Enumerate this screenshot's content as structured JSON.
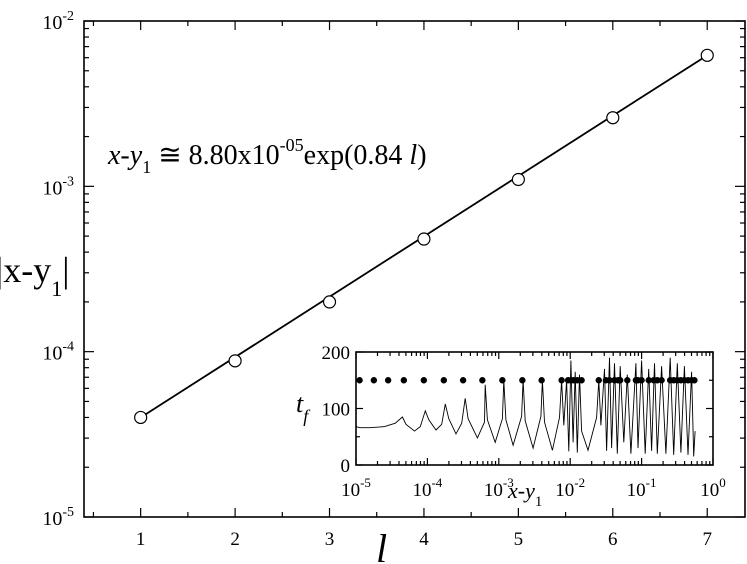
{
  "chart_data": [
    {
      "type": "scatter",
      "xlabel": "l",
      "ylabel": {
        "main": "|x-y",
        "sub": "1",
        "close": "|"
      },
      "xlim": [
        0.4,
        7.4
      ],
      "ylim_log10": [
        -5,
        -2
      ],
      "y_scale": "log",
      "grid": false,
      "x_ticks": [
        1,
        2,
        3,
        4,
        5,
        6,
        7
      ],
      "x_tick_labels": [
        "1",
        "2",
        "3",
        "4",
        "5",
        "6",
        "7"
      ],
      "y_ticks": [
        {
          "value": 1e-05,
          "base": "10",
          "exp": "-5"
        },
        {
          "value": 0.0001,
          "base": "10",
          "exp": "-4"
        },
        {
          "value": 0.001,
          "base": "10",
          "exp": "-3"
        },
        {
          "value": 0.01,
          "base": "10",
          "exp": "-2"
        }
      ],
      "points": [
        {
          "x": 1,
          "y": 4e-05
        },
        {
          "x": 2,
          "y": 8.8e-05
        },
        {
          "x": 3,
          "y": 0.0002
        },
        {
          "x": 4,
          "y": 0.00048
        },
        {
          "x": 5,
          "y": 0.0011
        },
        {
          "x": 6,
          "y": 0.0026
        },
        {
          "x": 7,
          "y": 0.0062
        }
      ],
      "fit": {
        "a": 8.8e-05,
        "b": 0.84,
        "x_range": [
          1,
          7
        ]
      },
      "annotation": {
        "p1": "x-y",
        "p1_sub": "1",
        "p2": " ≅ 8.80x10",
        "p2_sup": "-05",
        "p3": "exp(0.84 ",
        "p3_var": "l",
        "p3_end": ")"
      }
    },
    {
      "type": "line",
      "inset": true,
      "xlabel": {
        "main": "x-y",
        "sub": "1"
      },
      "ylabel": {
        "main": "t",
        "sub": "f"
      },
      "x_scale": "log",
      "xlim_log10": [
        -5,
        0
      ],
      "ylim": [
        0,
        200
      ],
      "y_ticks": [
        0,
        100,
        200
      ],
      "y_tick_labels": [
        "0",
        "100",
        "200"
      ],
      "x_ticks": [
        {
          "value": 1e-05,
          "base": "10",
          "exp": "-5"
        },
        {
          "value": 0.0001,
          "base": "10",
          "exp": "-4"
        },
        {
          "value": 0.001,
          "base": "10",
          "exp": "-3"
        },
        {
          "value": 0.01,
          "base": "10",
          "exp": "-2"
        },
        {
          "value": 0.1,
          "base": "10",
          "exp": "-1"
        },
        {
          "value": 1,
          "base": "10",
          "exp": "0"
        }
      ],
      "dots_y": 150,
      "dots_x_log10": [
        -4.95,
        -4.75,
        -4.55,
        -4.33,
        -4.05,
        -3.77,
        -3.5,
        -3.23,
        -2.95,
        -2.67,
        -2.4,
        -2.12,
        -2.03,
        -1.99,
        -1.95,
        -1.9,
        -1.84,
        -1.6,
        -1.5,
        -1.45,
        -1.38,
        -1.33,
        -1.3,
        -1.2,
        -1.08,
        -1.05,
        -1.0,
        -0.9,
        -0.83,
        -0.78,
        -0.72,
        -0.6,
        -0.55,
        -0.5,
        -0.45,
        -0.4,
        -0.35,
        -0.3,
        -0.26
      ],
      "curve": [
        [
          -5.0,
          68
        ],
        [
          -4.95,
          66
        ],
        [
          -4.8,
          66
        ],
        [
          -4.6,
          68
        ],
        [
          -4.45,
          74
        ],
        [
          -4.35,
          85
        ],
        [
          -4.3,
          72
        ],
        [
          -4.18,
          60
        ],
        [
          -4.1,
          68
        ],
        [
          -4.03,
          96
        ],
        [
          -3.98,
          80
        ],
        [
          -3.88,
          62
        ],
        [
          -3.8,
          72
        ],
        [
          -3.75,
          108
        ],
        [
          -3.7,
          82
        ],
        [
          -3.6,
          55
        ],
        [
          -3.52,
          74
        ],
        [
          -3.47,
          118
        ],
        [
          -3.43,
          82
        ],
        [
          -3.3,
          48
        ],
        [
          -3.2,
          76
        ],
        [
          -3.19,
          142
        ],
        [
          -3.16,
          80
        ],
        [
          -3.05,
          40
        ],
        [
          -2.95,
          82
        ],
        [
          -2.93,
          150
        ],
        [
          -2.9,
          80
        ],
        [
          -2.8,
          35
        ],
        [
          -2.68,
          86
        ],
        [
          -2.66,
          150
        ],
        [
          -2.63,
          78
        ],
        [
          -2.52,
          30
        ],
        [
          -2.41,
          86
        ],
        [
          -2.39,
          150
        ],
        [
          -2.36,
          76
        ],
        [
          -2.25,
          26
        ],
        [
          -2.15,
          84
        ],
        [
          -2.12,
          150
        ],
        [
          -2.09,
          70
        ],
        [
          -2.05,
          150
        ],
        [
          -2.02,
          24
        ],
        [
          -1.99,
          185
        ],
        [
          -1.96,
          40
        ],
        [
          -1.93,
          165
        ],
        [
          -1.9,
          22
        ],
        [
          -1.87,
          160
        ],
        [
          -1.84,
          60
        ],
        [
          -1.75,
          26
        ],
        [
          -1.63,
          84
        ],
        [
          -1.6,
          150
        ],
        [
          -1.57,
          70
        ],
        [
          -1.52,
          170
        ],
        [
          -1.49,
          25
        ],
        [
          -1.45,
          190
        ],
        [
          -1.42,
          30
        ],
        [
          -1.38,
          180
        ],
        [
          -1.34,
          20
        ],
        [
          -1.3,
          175
        ],
        [
          -1.25,
          40
        ],
        [
          -1.2,
          160
        ],
        [
          -1.15,
          20
        ],
        [
          -1.08,
          180
        ],
        [
          -1.05,
          30
        ],
        [
          -1.0,
          185
        ],
        [
          -0.95,
          20
        ],
        [
          -0.9,
          170
        ],
        [
          -0.86,
          25
        ],
        [
          -0.82,
          180
        ],
        [
          -0.78,
          20
        ],
        [
          -0.72,
          175
        ],
        [
          -0.66,
          20
        ],
        [
          -0.6,
          190
        ],
        [
          -0.55,
          18
        ],
        [
          -0.5,
          180
        ],
        [
          -0.45,
          22
        ],
        [
          -0.4,
          175
        ],
        [
          -0.35,
          18
        ],
        [
          -0.3,
          165
        ],
        [
          -0.27,
          15
        ],
        [
          -0.25,
          60
        ]
      ]
    }
  ]
}
